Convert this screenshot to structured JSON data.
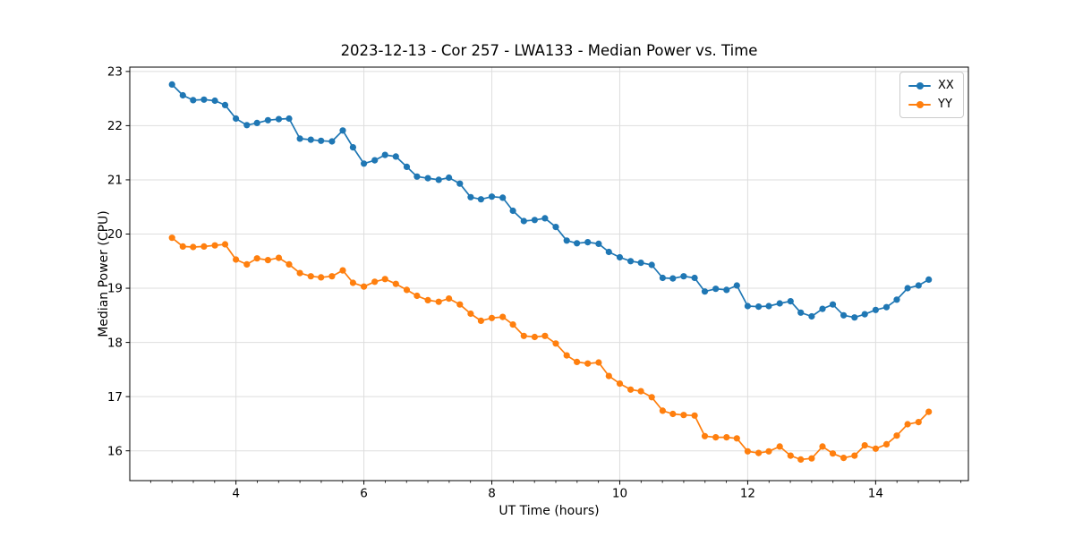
{
  "chart_data": {
    "type": "line",
    "title": "2023-12-13 - Cor 257 - LWA133 - Median Power vs. Time",
    "xlabel": "UT Time (hours)",
    "ylabel": "Median Power (CPU)",
    "xlim": [
      2.34,
      15.45
    ],
    "ylim": [
      15.45,
      23.08
    ],
    "xticks": [
      4,
      6,
      8,
      10,
      12,
      14
    ],
    "yticks": [
      16,
      17,
      18,
      19,
      20,
      21,
      22,
      23
    ],
    "x_minor_tick_step_hours": 0.3333,
    "grid": true,
    "grid_color": "#dedede",
    "axis_color": "#000000",
    "marker": "circle",
    "legend_position": "upper right",
    "x": [
      3.0,
      3.17,
      3.33,
      3.5,
      3.67,
      3.83,
      4.0,
      4.17,
      4.33,
      4.5,
      4.67,
      4.83,
      5.0,
      5.17,
      5.33,
      5.5,
      5.67,
      5.83,
      6.0,
      6.17,
      6.33,
      6.5,
      6.67,
      6.83,
      7.0,
      7.17,
      7.33,
      7.5,
      7.67,
      7.83,
      8.0,
      8.17,
      8.33,
      8.5,
      8.67,
      8.83,
      9.0,
      9.17,
      9.33,
      9.5,
      9.67,
      9.83,
      10.0,
      10.17,
      10.33,
      10.5,
      10.67,
      10.83,
      11.0,
      11.17,
      11.33,
      11.5,
      11.67,
      11.83,
      12.0,
      12.17,
      12.33,
      12.5,
      12.67,
      12.83,
      13.0,
      13.17,
      13.33,
      13.5,
      13.67,
      13.83,
      14.0,
      14.17,
      14.33,
      14.5,
      14.67,
      14.83
    ],
    "series": [
      {
        "name": "XX",
        "color": "#1f77b4",
        "values": [
          22.76,
          22.56,
          22.47,
          22.48,
          22.46,
          22.38,
          22.13,
          22.01,
          22.05,
          22.1,
          22.12,
          22.13,
          21.76,
          21.74,
          21.72,
          21.71,
          21.91,
          21.6,
          21.3,
          21.36,
          21.46,
          21.43,
          21.24,
          21.06,
          21.03,
          21.0,
          21.04,
          20.93,
          20.68,
          20.64,
          20.69,
          20.67,
          20.43,
          20.24,
          20.26,
          20.29,
          20.13,
          19.88,
          19.83,
          19.85,
          19.82,
          19.67,
          19.57,
          19.5,
          19.47,
          19.43,
          19.19,
          19.18,
          19.22,
          19.19,
          18.94,
          18.99,
          18.97,
          19.05,
          18.67,
          18.66,
          18.67,
          18.72,
          18.76,
          18.55,
          18.48,
          18.62,
          18.7,
          18.5,
          18.46,
          18.52,
          18.6,
          18.65,
          18.79,
          19.0,
          19.05,
          19.16
        ]
      },
      {
        "name": "YY",
        "color": "#ff7f0e",
        "values": [
          19.93,
          19.77,
          19.76,
          19.77,
          19.79,
          19.81,
          19.53,
          19.44,
          19.55,
          19.52,
          19.56,
          19.44,
          19.28,
          19.22,
          19.2,
          19.22,
          19.33,
          19.1,
          19.03,
          19.12,
          19.17,
          19.08,
          18.97,
          18.86,
          18.78,
          18.75,
          18.81,
          18.7,
          18.53,
          18.4,
          18.45,
          18.47,
          18.33,
          18.12,
          18.1,
          18.12,
          17.98,
          17.76,
          17.64,
          17.61,
          17.63,
          17.38,
          17.24,
          17.13,
          17.1,
          16.99,
          16.74,
          16.68,
          16.66,
          16.65,
          16.27,
          16.25,
          16.25,
          16.23,
          15.99,
          15.96,
          15.99,
          16.08,
          15.91,
          15.84,
          15.86,
          16.08,
          15.95,
          15.87,
          15.91,
          16.1,
          16.04,
          16.12,
          16.28,
          16.49,
          16.53,
          16.72
        ]
      }
    ]
  }
}
